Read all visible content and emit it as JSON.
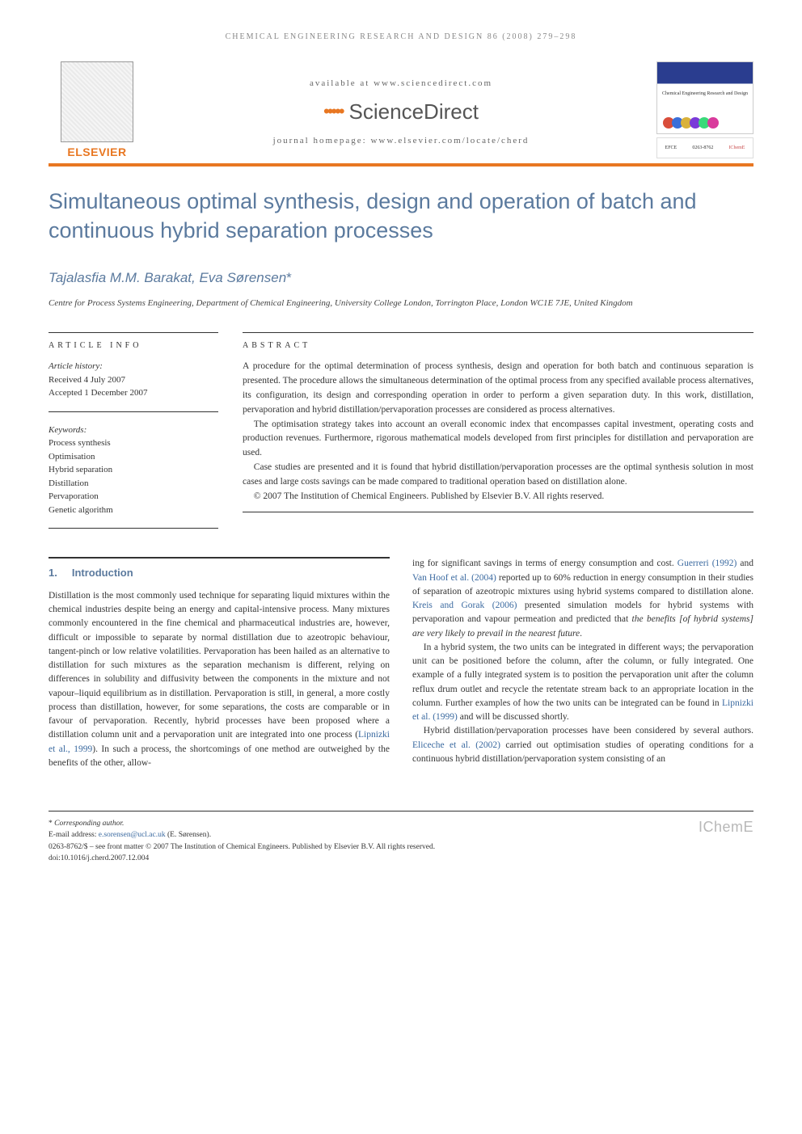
{
  "running_header": "CHEMICAL ENGINEERING RESEARCH AND DESIGN 86 (2008) 279–298",
  "masthead": {
    "publisher": "ELSEVIER",
    "available_at": "available at www.sciencedirect.com",
    "sciencedirect": "ScienceDirect",
    "homepage_label": "journal homepage: www.elsevier.com/locate/cherd",
    "journal_cover_title": "Chemical Engineering\nResearch and Design",
    "ball_colors": [
      "#d94d3a",
      "#3a6fd9",
      "#d9b13a",
      "#7a3ad9",
      "#3ad97a",
      "#d93a9c"
    ],
    "efce": "EFCE",
    "issn": "0263-8762",
    "icheme_small": "IChemE"
  },
  "title": "Simultaneous optimal synthesis, design and operation of batch and continuous hybrid separation processes",
  "authors_line": "Tajalasfia M.M. Barakat, Eva Sørensen",
  "corr_mark": "*",
  "affiliation": "Centre for Process Systems Engineering, Department of Chemical Engineering, University College London, Torrington Place, London WC1E 7JE, United Kingdom",
  "article_info": {
    "heading": "ARTICLE INFO",
    "history_label": "Article history:",
    "received": "Received 4 July 2007",
    "accepted": "Accepted 1 December 2007",
    "keywords_label": "Keywords:",
    "keywords": [
      "Process synthesis",
      "Optimisation",
      "Hybrid separation",
      "Distillation",
      "Pervaporation",
      "Genetic algorithm"
    ]
  },
  "abstract": {
    "heading": "ABSTRACT",
    "p1": "A procedure for the optimal determination of process synthesis, design and operation for both batch and continuous separation is presented. The procedure allows the simultaneous determination of the optimal process from any specified available process alternatives, its configuration, its design and corresponding operation in order to perform a given separation duty. In this work, distillation, pervaporation and hybrid distillation/pervaporation processes are considered as process alternatives.",
    "p2": "The optimisation strategy takes into account an overall economic index that encompasses capital investment, operating costs and production revenues. Furthermore, rigorous mathematical models developed from first principles for distillation and pervaporation are used.",
    "p3": "Case studies are presented and it is found that hybrid distillation/pervaporation processes are the optimal synthesis solution in most cases and large costs savings can be made compared to traditional operation based on distillation alone.",
    "copyright": "© 2007 The Institution of Chemical Engineers. Published by Elsevier B.V. All rights reserved."
  },
  "section1": {
    "num": "1.",
    "title": "Introduction",
    "col1_p1a": "Distillation is the most commonly used technique for separating liquid mixtures within the chemical industries despite being an energy and capital-intensive process. Many mixtures commonly encountered in the fine chemical and pharmaceutical industries are, however, difficult or impossible to separate by normal distillation due to azeotropic behaviour, tangent-pinch or low relative volatilities. Pervaporation has been hailed as an alternative to distillation for such mixtures as the separation mechanism is different, relying on differences in solubility and diffusivity between the components in the mixture and not vapour–liquid equilibrium as in distillation. Pervaporation is still, in general, a more costly process than distillation, however, for some separations, the costs are comparable or in favour of pervaporation. Recently, hybrid processes have been proposed where a distillation column unit and a pervaporation unit are integrated into one process (",
    "col1_cite1": "Lipnizki et al., 1999",
    "col1_p1b": "). In such a process, the shortcomings of one method are outweighed by the benefits of the other, allow-",
    "col2_p1a": "ing for significant savings in terms of energy consumption and cost. ",
    "col2_cite1": "Guerreri (1992)",
    "col2_p1b": " and ",
    "col2_cite2": "Van Hoof et al. (2004)",
    "col2_p1c": " reported up to 60% reduction in energy consumption in their studies of separation of azeotropic mixtures using hybrid systems compared to distillation alone. ",
    "col2_cite3": "Kreis and Gorak (2006)",
    "col2_p1d": " presented simulation models for hybrid systems with pervaporation and vapour permeation and predicted that ",
    "col2_ital1": "the benefits [of hybrid systems] are very likely to prevail in the nearest future",
    "col2_p1e": ".",
    "col2_p2a": "In a hybrid system, the two units can be integrated in different ways; the pervaporation unit can be positioned before the column, after the column, or fully integrated. One example of a fully integrated system is to position the pervaporation unit after the column reflux drum outlet and recycle the retentate stream back to an appropriate location in the column. Further examples of how the two units can be integrated can be found in ",
    "col2_cite4": "Lipnizki et al. (1999)",
    "col2_p2b": " and will be discussed shortly.",
    "col2_p3a": "Hybrid distillation/pervaporation processes have been considered by several authors. ",
    "col2_cite5": "Eliceche et al. (2002)",
    "col2_p3b": " carried out optimisation studies of operating conditions for a continuous hybrid distillation/pervaporation system consisting of an"
  },
  "footer": {
    "corr_label": "Corresponding author.",
    "email_label": "E-mail address: ",
    "email": "e.sorensen@ucl.ac.uk",
    "email_name": " (E. Sørensen).",
    "front_matter": "0263-8762/$ – see front matter © 2007 The Institution of Chemical Engineers. Published by Elsevier B.V. All rights reserved.",
    "doi": "doi:10.1016/j.cherd.2007.12.004",
    "icheme": "IChemE"
  },
  "colors": {
    "accent_orange": "#e87722",
    "heading_blue": "#5b7a9e",
    "link_blue": "#3b6aa0",
    "text": "#333333"
  },
  "typography": {
    "title_fontsize": 27,
    "body_fontsize": 11.5,
    "abstract_fontsize": 11.5,
    "footer_fontsize": 9.5
  }
}
